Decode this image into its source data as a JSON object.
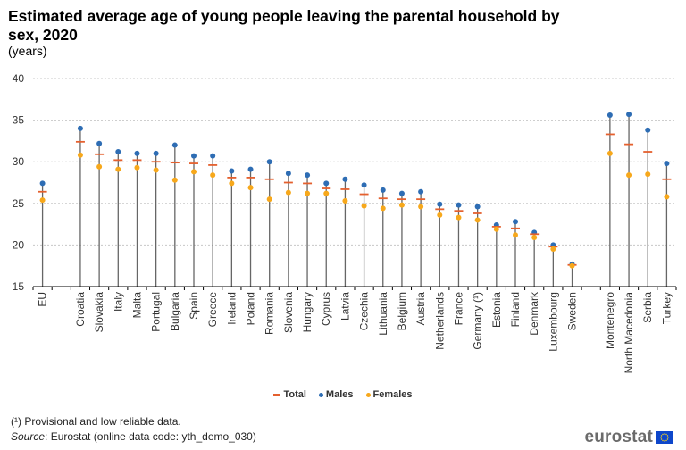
{
  "chart_data": {
    "type": "scatter",
    "title": "Estimated average age of young people leaving the parental household by sex, 2020",
    "subtitle": "(years)",
    "xlabel": "",
    "ylabel": "years",
    "ylim": [
      15,
      40
    ],
    "yticks": [
      15,
      20,
      25,
      30,
      35,
      40
    ],
    "grid": true,
    "legend_position": "bottom-center",
    "categories": [
      "EU",
      "",
      "Croatia",
      "Slovakia",
      "Italy",
      "Malta",
      "Portugal",
      "Bulgaria",
      "Spain",
      "Greece",
      "Ireland",
      "Poland",
      "Romania",
      "Slovenia",
      "Hungary",
      "Cyprus",
      "Latvia",
      "Czechia",
      "Lithuania",
      "Belgium",
      "Austria",
      "Netherlands",
      "France",
      "Germany (¹)",
      "Estonia",
      "Finland",
      "Denmark",
      "Luxembourg",
      "Sweden",
      "",
      "Montenegro",
      "North Macedonia",
      "Serbia",
      "Turkey"
    ],
    "series": [
      {
        "name": "Total",
        "marker": "dash",
        "color": "#e4602e",
        "values": [
          26.4,
          null,
          32.4,
          30.9,
          30.2,
          30.2,
          30.0,
          29.9,
          29.8,
          29.6,
          28.1,
          28.1,
          27.9,
          27.5,
          27.4,
          26.8,
          26.7,
          26.1,
          25.6,
          25.5,
          25.5,
          24.3,
          24.1,
          23.8,
          22.2,
          22.0,
          21.3,
          19.8,
          17.6,
          null,
          33.3,
          32.1,
          31.2,
          27.9
        ]
      },
      {
        "name": "Males",
        "marker": "dot",
        "color": "#2e6db4",
        "values": [
          27.4,
          null,
          34.0,
          32.2,
          31.2,
          31.0,
          31.0,
          32.0,
          30.7,
          30.7,
          28.9,
          29.1,
          30.0,
          28.6,
          28.4,
          27.4,
          27.9,
          27.2,
          26.6,
          26.2,
          26.4,
          24.9,
          24.8,
          24.6,
          22.4,
          22.8,
          21.5,
          20.0,
          17.7,
          null,
          35.6,
          35.7,
          33.8,
          29.8
        ]
      },
      {
        "name": "Females",
        "marker": "dot",
        "color": "#f7a81b",
        "values": [
          25.4,
          null,
          30.8,
          29.4,
          29.1,
          29.3,
          29.0,
          27.8,
          28.8,
          28.4,
          27.4,
          26.9,
          25.5,
          26.3,
          26.2,
          26.2,
          25.3,
          24.7,
          24.4,
          24.8,
          24.6,
          23.6,
          23.3,
          23.0,
          21.9,
          21.2,
          20.9,
          19.5,
          17.5,
          null,
          31.0,
          28.4,
          28.5,
          25.8
        ]
      }
    ]
  },
  "legend": {
    "total": "Total",
    "males": "Males",
    "females": "Females"
  },
  "colors": {
    "total": "#e4602e",
    "males": "#2e6db4",
    "females": "#f7a81b",
    "stem": "#666666",
    "grid": "#c8c8c8"
  },
  "footnote": "(¹) Provisional and low reliable data.",
  "source": {
    "label": "Source",
    "text": ": Eurostat (online data code: yth_demo_030)"
  },
  "logo": {
    "text": "eurostat",
    "flag": "eu-flag-icon"
  }
}
